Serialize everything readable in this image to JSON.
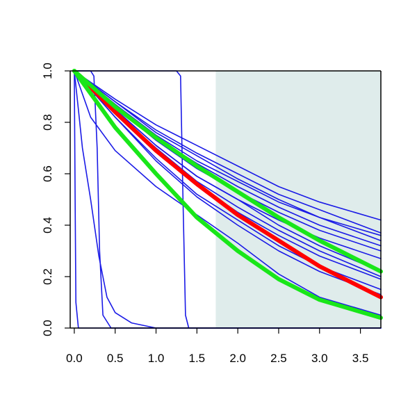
{
  "chart_data": {
    "type": "line",
    "title": "",
    "xlabel": "",
    "ylabel": "",
    "xlim": [
      -0.05,
      3.75
    ],
    "ylim": [
      0.0,
      1.0
    ],
    "x_ticks": [
      "0.0",
      "0.5",
      "1.0",
      "1.5",
      "2.0",
      "2.5",
      "3.0",
      "3.5"
    ],
    "y_ticks": [
      "0.0",
      "0.2",
      "0.4",
      "0.6",
      "0.8",
      "1.0"
    ],
    "x_tick_values": [
      0.0,
      0.5,
      1.0,
      1.5,
      2.0,
      2.5,
      3.0,
      3.5
    ],
    "y_tick_values": [
      0.0,
      0.2,
      0.4,
      0.6,
      0.8,
      1.0
    ],
    "grid": false,
    "shaded_region": {
      "x_start": 1.73,
      "x_end": 3.75,
      "color": "#dfeceb"
    },
    "colors": {
      "blue": "#1a1ae6",
      "red": "#ff0000",
      "green": "#19e619",
      "axis": "#000000"
    },
    "series": [
      {
        "color": "blue",
        "points": [
          [
            0.0,
            1.0
          ],
          [
            0.5,
            0.87
          ],
          [
            1.0,
            0.75
          ],
          [
            1.5,
            0.65
          ],
          [
            2.0,
            0.57
          ],
          [
            2.5,
            0.49
          ],
          [
            3.0,
            0.43
          ],
          [
            3.75,
            0.36
          ]
        ]
      },
      {
        "color": "blue",
        "points": [
          [
            0.0,
            1.0
          ],
          [
            0.5,
            0.88
          ],
          [
            1.0,
            0.77
          ],
          [
            1.5,
            0.68
          ],
          [
            2.0,
            0.6
          ],
          [
            2.5,
            0.52
          ],
          [
            3.0,
            0.46
          ],
          [
            3.75,
            0.37
          ]
        ]
      },
      {
        "color": "blue",
        "points": [
          [
            0.0,
            1.0
          ],
          [
            0.5,
            0.89
          ],
          [
            1.0,
            0.79
          ],
          [
            1.5,
            0.71
          ],
          [
            2.0,
            0.63
          ],
          [
            2.5,
            0.55
          ],
          [
            3.0,
            0.49
          ],
          [
            3.75,
            0.42
          ]
        ]
      },
      {
        "color": "blue",
        "points": [
          [
            0.0,
            1.0
          ],
          [
            0.5,
            0.88
          ],
          [
            1.0,
            0.76
          ],
          [
            1.5,
            0.67
          ],
          [
            2.0,
            0.58
          ],
          [
            2.5,
            0.5
          ],
          [
            3.0,
            0.43
          ],
          [
            3.75,
            0.34
          ]
        ]
      },
      {
        "color": "blue",
        "points": [
          [
            0.0,
            1.0
          ],
          [
            0.5,
            0.87
          ],
          [
            1.0,
            0.74
          ],
          [
            1.5,
            0.64
          ],
          [
            2.0,
            0.55
          ],
          [
            2.5,
            0.47
          ],
          [
            3.0,
            0.4
          ],
          [
            3.75,
            0.32
          ]
        ]
      },
      {
        "color": "blue",
        "points": [
          [
            0.0,
            1.0
          ],
          [
            0.5,
            0.86
          ],
          [
            1.0,
            0.73
          ],
          [
            1.5,
            0.62
          ],
          [
            2.0,
            0.53
          ],
          [
            2.5,
            0.45
          ],
          [
            3.0,
            0.38
          ],
          [
            3.75,
            0.3
          ]
        ]
      },
      {
        "color": "blue",
        "points": [
          [
            0.0,
            1.0
          ],
          [
            0.5,
            0.85
          ],
          [
            1.0,
            0.71
          ],
          [
            1.5,
            0.59
          ],
          [
            2.0,
            0.5
          ],
          [
            2.5,
            0.42
          ],
          [
            3.0,
            0.35
          ],
          [
            3.75,
            0.27
          ]
        ]
      },
      {
        "color": "blue",
        "points": [
          [
            0.0,
            1.0
          ],
          [
            0.5,
            0.85
          ],
          [
            1.0,
            0.71
          ],
          [
            1.5,
            0.59
          ],
          [
            2.0,
            0.5
          ],
          [
            2.5,
            0.4
          ],
          [
            3.0,
            0.32
          ],
          [
            3.75,
            0.22
          ]
        ]
      },
      {
        "color": "blue",
        "points": [
          [
            0.0,
            1.0
          ],
          [
            0.5,
            0.84
          ],
          [
            1.0,
            0.7
          ],
          [
            1.5,
            0.57
          ],
          [
            2.0,
            0.47
          ],
          [
            2.5,
            0.38
          ],
          [
            3.0,
            0.3
          ],
          [
            3.75,
            0.2
          ]
        ]
      },
      {
        "color": "blue",
        "points": [
          [
            0.0,
            1.0
          ],
          [
            0.5,
            0.84
          ],
          [
            1.0,
            0.69
          ],
          [
            1.5,
            0.56
          ],
          [
            2.0,
            0.45
          ],
          [
            2.5,
            0.36
          ],
          [
            3.0,
            0.28
          ],
          [
            3.75,
            0.19
          ]
        ]
      },
      {
        "color": "blue",
        "points": [
          [
            0.0,
            1.0
          ],
          [
            0.5,
            0.82
          ],
          [
            1.0,
            0.66
          ],
          [
            1.5,
            0.52
          ],
          [
            2.0,
            0.42
          ],
          [
            2.5,
            0.32
          ],
          [
            3.0,
            0.24
          ],
          [
            3.75,
            0.15
          ]
        ]
      },
      {
        "color": "blue",
        "points": [
          [
            0.0,
            1.0
          ],
          [
            0.5,
            0.82
          ],
          [
            1.0,
            0.65
          ],
          [
            1.5,
            0.51
          ],
          [
            2.0,
            0.4
          ],
          [
            2.5,
            0.3
          ],
          [
            3.0,
            0.22
          ],
          [
            3.75,
            0.13
          ]
        ]
      },
      {
        "color": "blue",
        "points": [
          [
            0.0,
            1.0
          ],
          [
            0.2,
            0.82
          ],
          [
            0.5,
            0.69
          ],
          [
            1.0,
            0.55
          ],
          [
            1.5,
            0.44
          ],
          [
            2.0,
            0.33
          ],
          [
            2.5,
            0.21
          ],
          [
            3.0,
            0.12
          ],
          [
            3.75,
            0.05
          ]
        ]
      },
      {
        "color": "blue",
        "points": [
          [
            0.0,
            1.0
          ],
          [
            0.05,
            0.85
          ],
          [
            0.1,
            0.7
          ],
          [
            0.2,
            0.5
          ],
          [
            0.3,
            0.28
          ],
          [
            0.4,
            0.12
          ],
          [
            0.5,
            0.06
          ],
          [
            0.7,
            0.02
          ],
          [
            1.0,
            0.0
          ],
          [
            3.75,
            0.0
          ]
        ]
      },
      {
        "color": "blue",
        "points": [
          [
            0.0,
            1.0
          ],
          [
            0.01,
            0.5
          ],
          [
            0.02,
            0.1
          ],
          [
            0.05,
            0.0
          ],
          [
            3.75,
            0.0
          ]
        ]
      },
      {
        "color": "blue",
        "points": [
          [
            0.0,
            1.0
          ],
          [
            0.2,
            1.0
          ],
          [
            0.24,
            0.98
          ],
          [
            0.28,
            0.7
          ],
          [
            0.31,
            0.3
          ],
          [
            0.35,
            0.05
          ],
          [
            0.45,
            0.0
          ],
          [
            3.75,
            0.0
          ]
        ]
      },
      {
        "color": "blue",
        "points": [
          [
            0.0,
            1.0
          ],
          [
            1.25,
            1.0
          ],
          [
            1.3,
            0.98
          ],
          [
            1.33,
            0.5
          ],
          [
            1.36,
            0.05
          ],
          [
            1.4,
            0.0
          ],
          [
            3.75,
            0.0
          ]
        ]
      },
      {
        "color": "red",
        "points": [
          [
            0.0,
            1.0
          ],
          [
            0.5,
            0.84
          ],
          [
            1.0,
            0.69
          ],
          [
            1.5,
            0.56
          ],
          [
            2.0,
            0.44
          ],
          [
            2.5,
            0.34
          ],
          [
            3.0,
            0.24
          ],
          [
            3.75,
            0.12
          ]
        ]
      },
      {
        "color": "green",
        "points": [
          [
            0.0,
            1.0
          ],
          [
            0.5,
            0.86
          ],
          [
            1.0,
            0.74
          ],
          [
            1.5,
            0.63
          ],
          [
            2.0,
            0.53
          ],
          [
            2.5,
            0.43
          ],
          [
            3.0,
            0.34
          ],
          [
            3.75,
            0.22
          ]
        ]
      },
      {
        "color": "green",
        "points": [
          [
            0.0,
            1.0
          ],
          [
            0.5,
            0.78
          ],
          [
            1.0,
            0.6
          ],
          [
            1.5,
            0.43
          ],
          [
            2.0,
            0.3
          ],
          [
            2.5,
            0.19
          ],
          [
            3.0,
            0.11
          ],
          [
            3.75,
            0.04
          ]
        ]
      }
    ]
  }
}
